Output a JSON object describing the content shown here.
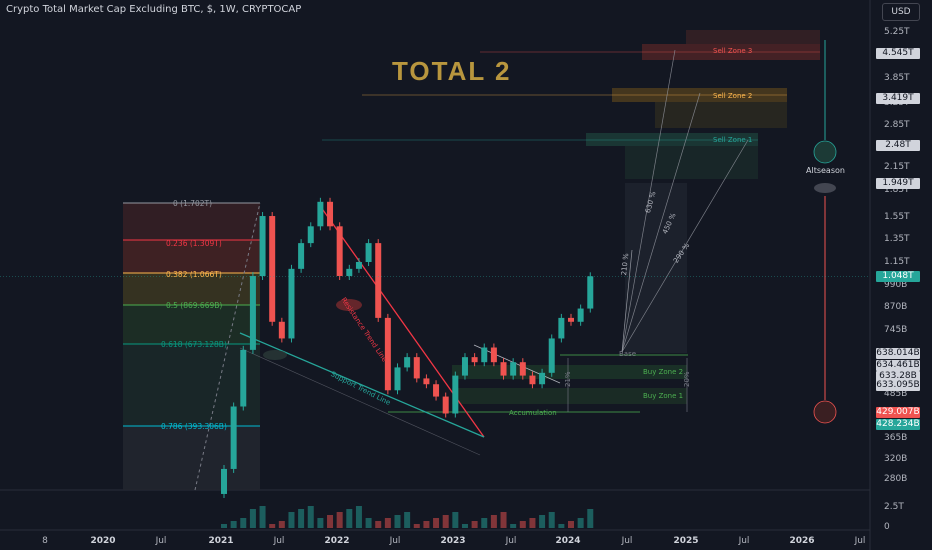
{
  "header": {
    "symbol_line": "Crypto Total Market Cap Excluding BTC, $, 1W, CRYPTOCAP",
    "currency_button": "USD"
  },
  "overlay_title": "TOTAL 2",
  "price_axis": {
    "labels": [
      "5.25T",
      "3.85T",
      "3.25T",
      "2.85T",
      "2.15T",
      "1.85T",
      "1.55T",
      "1.35T",
      "1.15T",
      "990B",
      "870B",
      "745B",
      "485B",
      "365B",
      "320B",
      "280B"
    ],
    "tags": [
      {
        "text": "4.545T",
        "bg": "#d1d4dc",
        "fg": "#131722"
      },
      {
        "text": "3.419T",
        "bg": "#d1d4dc",
        "fg": "#131722"
      },
      {
        "text": "2.48T",
        "bg": "#d1d4dc",
        "fg": "#131722"
      },
      {
        "text": "1.949T",
        "bg": "#d1d4dc",
        "fg": "#131722"
      },
      {
        "text": "1.048T",
        "bg": "#26a69a",
        "fg": "#ffffff"
      },
      {
        "text": "638.014B",
        "bg": "#d1d4dc",
        "fg": "#131722"
      },
      {
        "text": "634.461B",
        "bg": "#d1d4dc",
        "fg": "#131722"
      },
      {
        "text": "633.28B",
        "bg": "#d1d4dc",
        "fg": "#131722"
      },
      {
        "text": "633.095B",
        "bg": "#d1d4dc",
        "fg": "#131722"
      },
      {
        "text": "429.007B",
        "bg": "#ef5350",
        "fg": "#ffffff"
      },
      {
        "text": "428.234B",
        "bg": "#26a69a",
        "fg": "#ffffff"
      }
    ],
    "volume_labels": [
      "2.5T",
      "0"
    ]
  },
  "time_axis": {
    "labels": [
      {
        "text": "8",
        "bold": false
      },
      {
        "text": "2020",
        "bold": true
      },
      {
        "text": "Jul",
        "bold": false
      },
      {
        "text": "2021",
        "bold": true
      },
      {
        "text": "Jul",
        "bold": false
      },
      {
        "text": "2022",
        "bold": true
      },
      {
        "text": "Jul",
        "bold": false
      },
      {
        "text": "2023",
        "bold": true
      },
      {
        "text": "Jul",
        "bold": false
      },
      {
        "text": "2024",
        "bold": true
      },
      {
        "text": "Jul",
        "bold": false
      },
      {
        "text": "2025",
        "bold": true
      },
      {
        "text": "Jul",
        "bold": false
      },
      {
        "text": "2026",
        "bold": true
      },
      {
        "text": "Jul",
        "bold": false
      }
    ]
  },
  "fib_levels": [
    {
      "label": "0 (1.702T)",
      "color": "#9598a1"
    },
    {
      "label": "0.236 (1.309T)",
      "color": "#f23645"
    },
    {
      "label": "0.382 (1.066T)",
      "color": "#ffb74d"
    },
    {
      "label": "0.5 (869.669B)",
      "color": "#4caf50"
    },
    {
      "label": "0.618 (673.128B)",
      "color": "#089981"
    },
    {
      "label": "0.786 (393.306B)",
      "color": "#00bcd4"
    }
  ],
  "annotations": {
    "sell_zone_3": "Sell Zone 3",
    "sell_zone_2": "Sell Zone 2",
    "sell_zone_1": "Sell Zone 1",
    "buy_zone_2": "Buy Zone 2",
    "buy_zone_1": "Buy Zone 1",
    "accumulation": "Accumulation",
    "resistance": "Resistance Trend Line",
    "support": "Support Trend Line",
    "altseason": "Altseason",
    "fan_630": "630 %",
    "fan_450": "450 %",
    "fan_290": "290 %",
    "fan_210": "210 %",
    "base": "Base",
    "pct_left": "21%",
    "pct_right": "20%"
  },
  "chart_data": {
    "type": "candlestick",
    "title": "Crypto Total Market Cap Excluding BTC, $, 1W, CRYPTOCAP",
    "x_unit": "date",
    "y_unit": "USD",
    "y_scale": "log",
    "series": [
      {
        "points": [
          {
            "x": "2021-01",
            "y": 0.3
          },
          {
            "x": "2021-02",
            "y": 0.45
          },
          {
            "x": "2021-03",
            "y": 0.65
          },
          {
            "x": "2021-04",
            "y": 1.05
          },
          {
            "x": "2021-05",
            "y": 1.55
          },
          {
            "x": "2021-06",
            "y": 0.78
          },
          {
            "x": "2021-07",
            "y": 0.7
          },
          {
            "x": "2021-08",
            "y": 1.1
          },
          {
            "x": "2021-09",
            "y": 1.3
          },
          {
            "x": "2021-10",
            "y": 1.45
          },
          {
            "x": "2021-11",
            "y": 1.7
          },
          {
            "x": "2021-12",
            "y": 1.45
          },
          {
            "x": "2022-01",
            "y": 1.05
          },
          {
            "x": "2022-02",
            "y": 1.1
          },
          {
            "x": "2022-03",
            "y": 1.15
          },
          {
            "x": "2022-04",
            "y": 1.3
          },
          {
            "x": "2022-05",
            "y": 0.8
          },
          {
            "x": "2022-06",
            "y": 0.5
          },
          {
            "x": "2022-07",
            "y": 0.58
          },
          {
            "x": "2022-08",
            "y": 0.62
          },
          {
            "x": "2022-09",
            "y": 0.54
          },
          {
            "x": "2022-10",
            "y": 0.52
          },
          {
            "x": "2022-11",
            "y": 0.48
          },
          {
            "x": "2022-12",
            "y": 0.43
          },
          {
            "x": "2023-01",
            "y": 0.55
          },
          {
            "x": "2023-02",
            "y": 0.62
          },
          {
            "x": "2023-03",
            "y": 0.6
          },
          {
            "x": "2023-04",
            "y": 0.66
          },
          {
            "x": "2023-05",
            "y": 0.6
          },
          {
            "x": "2023-06",
            "y": 0.55
          },
          {
            "x": "2023-07",
            "y": 0.6
          },
          {
            "x": "2023-08",
            "y": 0.55
          },
          {
            "x": "2023-09",
            "y": 0.52
          },
          {
            "x": "2023-10",
            "y": 0.56
          },
          {
            "x": "2023-11",
            "y": 0.7
          },
          {
            "x": "2023-12",
            "y": 0.8
          },
          {
            "x": "2024-01",
            "y": 0.78
          },
          {
            "x": "2024-02",
            "y": 0.85
          },
          {
            "x": "2024-03",
            "y": 1.048
          }
        ]
      }
    ],
    "y_ticks": [
      0.28,
      0.32,
      0.365,
      0.485,
      0.745,
      0.87,
      0.99,
      1.15,
      1.35,
      1.55,
      1.85,
      2.15,
      2.85,
      3.25,
      3.85,
      5.25
    ]
  }
}
